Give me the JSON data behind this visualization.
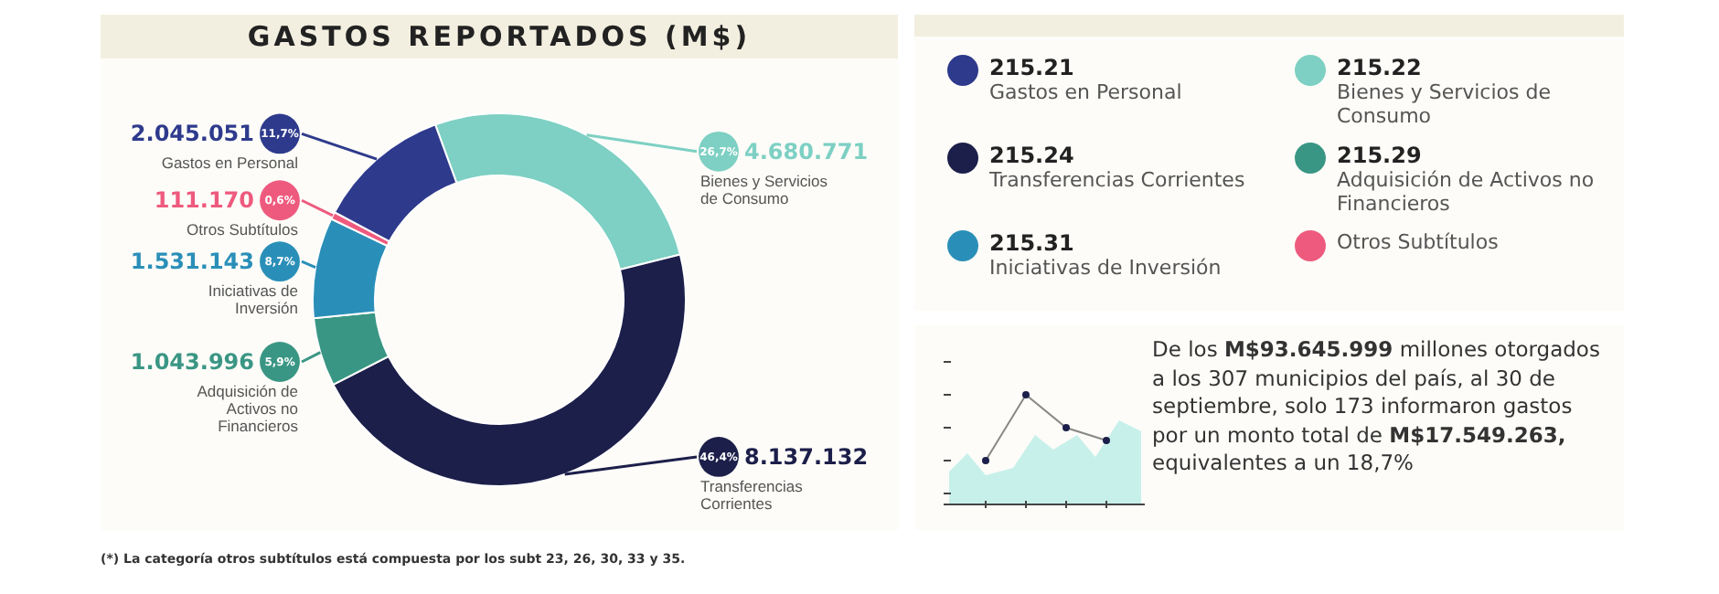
{
  "chart_data": {
    "type": "donut",
    "title": "GASTOS REPORTADOS (M$)",
    "categories": [
      "Bienes y Servicios de Consumo",
      "Transferencias Corrientes",
      "Adquisición de Activos no Financieros",
      "Iniciativas de Inversión",
      "Otros Subtítulos",
      "Gastos en Personal"
    ],
    "values": [
      4680771,
      8137132,
      1043996,
      1531143,
      111170,
      2045051
    ],
    "colors": [
      "#7dd0c3",
      "#1c1f4a",
      "#3a9684",
      "#2a8fb8",
      "#ee5a7e",
      "#2e3a8c"
    ],
    "value_labels": [
      "4.680.771",
      "8.137.132",
      "1.043.996",
      "1.531.143",
      "111.170",
      "2.045.051"
    ],
    "legend": "right",
    "annotations": [
      {
        "text": "26,7%",
        "x": "Bienes y Servicios de Consumo"
      },
      {
        "text": "46,4%",
        "x": "Transferencias Corrientes"
      },
      {
        "text": "5,9%",
        "x": "Adquisición de Activos no Financieros"
      },
      {
        "text": "8,7%",
        "x": "Iniciativas de Inversión"
      },
      {
        "text": "0,6%",
        "x": "Otros Subtítulos"
      },
      {
        "text": "11,7%",
        "x": "Gastos en Personal"
      },
      {
        "text": "215.21",
        "x": "Gastos en Personal"
      },
      {
        "text": "215.22",
        "x": "Bienes y Servicios de Consumo"
      },
      {
        "text": "215.24",
        "x": "Transferencias Corrientes"
      },
      {
        "text": "215.29",
        "x": "Adquisición de Activos no Financieros"
      },
      {
        "text": "215.31",
        "x": "Iniciativas de Inversión"
      },
      "De los M$93.645.999 millones otorgados a los 307 municipios del país, al 30 de septiembre, solo 173 informaron gastos por un monto total de M$17.549.263, equivalentes a un 18,7%",
      "(*) La categoría otros subtítulos está compuesta por los subt 23, 26, 30, 33 y 35."
    ]
  }
}
